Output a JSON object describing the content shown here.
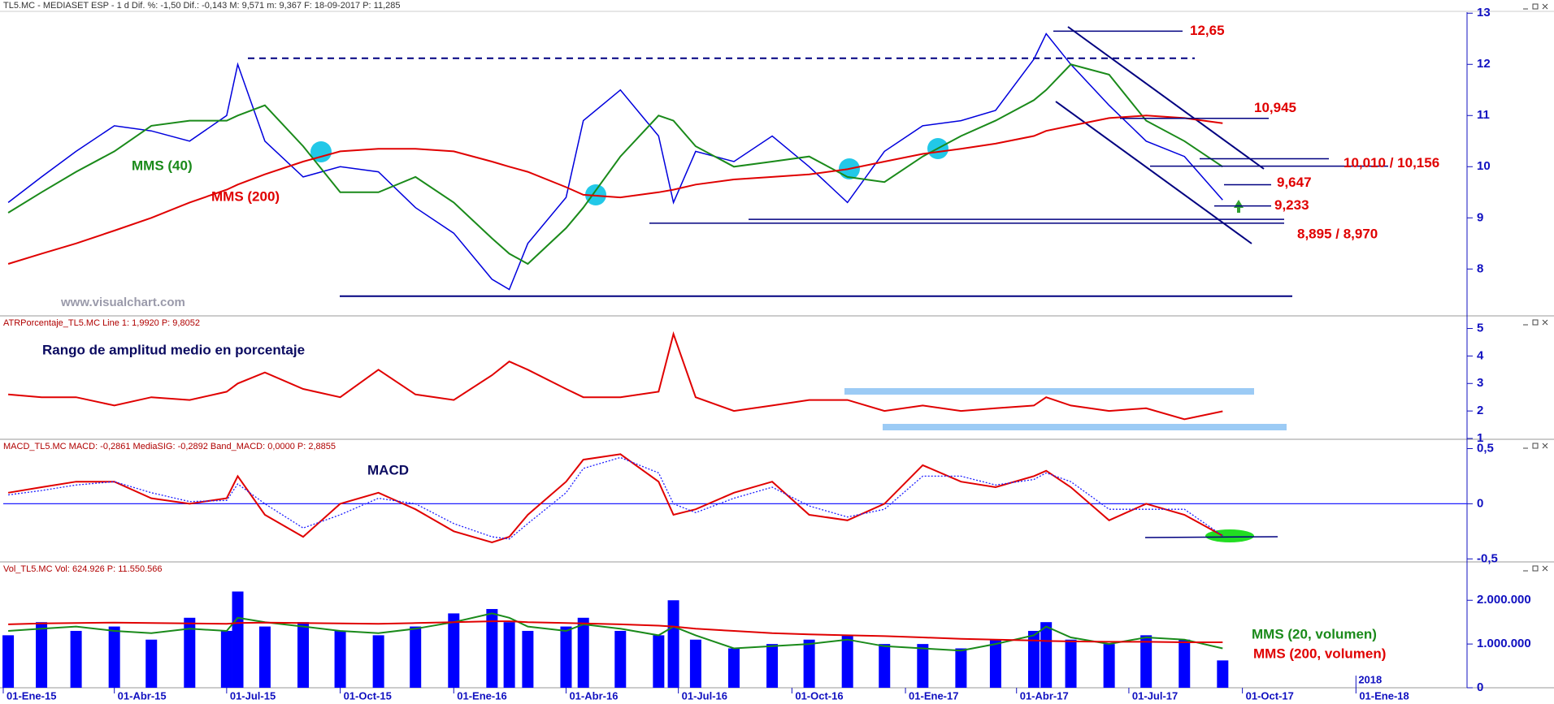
{
  "chart_data": [
    {
      "type": "line",
      "title": "TL5.MC - MEDIASET ESP - 1 d Dif. %: -1,50 Dif.: -0,143 M: 9,571 m: 9,367 F: 18-09-2017 P: 11,285",
      "x": [
        "2015-01-05",
        "2015-02-01",
        "2015-03-01",
        "2015-04-01",
        "2015-05-01",
        "2015-06-01",
        "2015-07-01",
        "2015-07-10",
        "2015-08-01",
        "2015-09-01",
        "2015-10-01",
        "2015-11-01",
        "2015-12-01",
        "2016-01-01",
        "2016-02-01",
        "2016-02-15",
        "2016-03-01",
        "2016-04-01",
        "2016-04-15",
        "2016-05-15",
        "2016-06-15",
        "2016-06-27",
        "2016-07-15",
        "2016-08-15",
        "2016-09-15",
        "2016-10-15",
        "2016-11-15",
        "2016-12-15",
        "2017-01-15",
        "2017-02-15",
        "2017-03-15",
        "2017-04-15",
        "2017-04-25",
        "2017-05-15",
        "2017-06-15",
        "2017-07-15",
        "2017-08-15",
        "2017-09-15"
      ],
      "xlim": [
        "2015-01-01",
        "2018-04-01"
      ],
      "ylim": [
        7.1,
        13.02
      ],
      "yticks": [
        8,
        9,
        10,
        11,
        12,
        13
      ],
      "series": [
        {
          "color": "#0000dd",
          "values": [
            9.3,
            9.8,
            10.3,
            10.8,
            10.7,
            10.5,
            11.0,
            12.0,
            10.5,
            9.8,
            10.0,
            9.9,
            9.2,
            8.7,
            7.8,
            7.6,
            8.5,
            9.4,
            10.9,
            11.5,
            10.6,
            9.3,
            10.3,
            10.1,
            10.6,
            10.0,
            9.3,
            10.3,
            10.8,
            10.9,
            11.1,
            12.1,
            12.6,
            12.0,
            11.2,
            10.5,
            10.2,
            9.35
          ]
        },
        {
          "name": "MMS (40)",
          "color": "#1a8a1a",
          "values": [
            9.1,
            9.5,
            9.9,
            10.3,
            10.8,
            10.9,
            10.9,
            11.0,
            11.2,
            10.4,
            9.5,
            9.5,
            9.8,
            9.3,
            8.6,
            8.3,
            8.1,
            8.8,
            9.2,
            10.2,
            11.0,
            10.9,
            10.4,
            10.0,
            10.1,
            10.2,
            9.8,
            9.7,
            10.2,
            10.6,
            10.9,
            11.3,
            11.5,
            12.0,
            11.8,
            10.9,
            10.5,
            10.0
          ]
        },
        {
          "name": "MMS (200)",
          "color": "#e00000",
          "values": [
            8.1,
            8.3,
            8.5,
            8.75,
            9.0,
            9.3,
            9.55,
            9.65,
            9.85,
            10.1,
            10.3,
            10.35,
            10.35,
            10.3,
            10.1,
            10.0,
            9.9,
            9.6,
            9.45,
            9.4,
            9.5,
            9.55,
            9.65,
            9.75,
            9.8,
            9.85,
            9.95,
            10.1,
            10.25,
            10.35,
            10.45,
            10.6,
            10.7,
            10.8,
            10.95,
            11.0,
            10.95,
            10.85
          ]
        }
      ],
      "levels": [
        {
          "values": [
            12.65
          ],
          "label": "12,65"
        },
        {
          "values": [
            10.945
          ],
          "label": "10,945"
        },
        {
          "values": [
            10.156,
            10.01
          ],
          "label": "10,010 / 10,156"
        },
        {
          "values": [
            9.647
          ],
          "label": "9,647"
        },
        {
          "values": [
            9.233
          ],
          "label": "9,233"
        },
        {
          "values": [
            8.895,
            8.97
          ],
          "label": "8,895 / 8,970"
        }
      ],
      "support_lines": [
        12.12,
        7.47
      ],
      "watermark": "www.visualchart.com"
    },
    {
      "type": "line",
      "title": "ATRPorcentaje_TL5.MC Line 1: 1,9920 P: 9,8052",
      "subtitle": "Rango de amplitud medio en porcentaje",
      "x": [
        "2015-01-05",
        "2015-02-01",
        "2015-03-01",
        "2015-04-01",
        "2015-05-01",
        "2015-06-01",
        "2015-07-01",
        "2015-07-10",
        "2015-08-01",
        "2015-09-01",
        "2015-10-01",
        "2015-11-01",
        "2015-12-01",
        "2016-01-01",
        "2016-02-01",
        "2016-02-15",
        "2016-03-01",
        "2016-04-01",
        "2016-04-15",
        "2016-05-15",
        "2016-06-15",
        "2016-06-27",
        "2016-07-15",
        "2016-08-15",
        "2016-09-15",
        "2016-10-15",
        "2016-11-15",
        "2016-12-15",
        "2017-01-15",
        "2017-02-15",
        "2017-03-15",
        "2017-04-15",
        "2017-04-25",
        "2017-05-15",
        "2017-06-15",
        "2017-07-15",
        "2017-08-15",
        "2017-09-15"
      ],
      "xlim": [
        "2015-01-01",
        "2018-04-01"
      ],
      "ylim": [
        1.0,
        5.4
      ],
      "yticks": [
        1,
        2,
        3,
        4,
        5
      ],
      "series": [
        {
          "color": "#e00000",
          "values": [
            2.6,
            2.5,
            2.5,
            2.2,
            2.5,
            2.4,
            2.7,
            3.0,
            3.4,
            2.8,
            2.5,
            3.5,
            2.6,
            2.4,
            3.3,
            3.8,
            3.5,
            2.8,
            2.5,
            2.5,
            2.7,
            4.8,
            2.5,
            2.0,
            2.2,
            2.4,
            2.4,
            2.0,
            2.2,
            2.0,
            2.1,
            2.2,
            2.5,
            2.2,
            2.0,
            2.1,
            1.7,
            1.99
          ]
        }
      ]
    },
    {
      "type": "line",
      "title": "MACD_TL5.MC MACD: -0,2861 MediaSIG: -0,2892 Band_MACD: 0,0000 P: 2,8855",
      "subtitle": "MACD",
      "x": [
        "2015-01-05",
        "2015-02-01",
        "2015-03-01",
        "2015-04-01",
        "2015-05-01",
        "2015-06-01",
        "2015-07-01",
        "2015-07-10",
        "2015-08-01",
        "2015-09-01",
        "2015-10-01",
        "2015-11-01",
        "2015-12-01",
        "2016-01-01",
        "2016-02-01",
        "2016-02-15",
        "2016-03-01",
        "2016-04-01",
        "2016-04-15",
        "2016-05-15",
        "2016-06-15",
        "2016-06-27",
        "2016-07-15",
        "2016-08-15",
        "2016-09-15",
        "2016-10-15",
        "2016-11-15",
        "2016-12-15",
        "2017-01-15",
        "2017-02-15",
        "2017-03-15",
        "2017-04-15",
        "2017-04-25",
        "2017-05-15",
        "2017-06-15",
        "2017-07-15",
        "2017-08-15",
        "2017-09-15"
      ],
      "xlim": [
        "2015-01-01",
        "2018-04-01"
      ],
      "ylim": [
        -0.52,
        0.57
      ],
      "yticks": [
        {
          "value": -0.5,
          "label": "-0,5"
        },
        0,
        {
          "value": 0.5,
          "label": "0,5"
        }
      ],
      "zero_line": true,
      "series": [
        {
          "color": "#e00000",
          "values": [
            0.1,
            0.15,
            0.2,
            0.2,
            0.05,
            0.0,
            0.05,
            0.25,
            -0.1,
            -0.3,
            0.0,
            0.1,
            -0.05,
            -0.25,
            -0.35,
            -0.3,
            -0.1,
            0.2,
            0.4,
            0.45,
            0.2,
            -0.1,
            -0.05,
            0.1,
            0.2,
            -0.1,
            -0.15,
            0.0,
            0.35,
            0.2,
            0.15,
            0.25,
            0.3,
            0.15,
            -0.15,
            0.0,
            -0.1,
            -0.29
          ]
        },
        {
          "color": "#2020ff",
          "dotted": true,
          "values": [
            0.08,
            0.12,
            0.17,
            0.2,
            0.1,
            0.02,
            0.03,
            0.18,
            0.0,
            -0.22,
            -0.1,
            0.05,
            0.0,
            -0.18,
            -0.3,
            -0.32,
            -0.18,
            0.1,
            0.32,
            0.42,
            0.28,
            0.0,
            -0.08,
            0.05,
            0.15,
            -0.02,
            -0.12,
            -0.05,
            0.25,
            0.25,
            0.17,
            0.22,
            0.28,
            0.2,
            -0.05,
            -0.05,
            -0.05,
            -0.29
          ]
        }
      ]
    },
    {
      "type": "bar",
      "title": "Vol_TL5.MC Vol: 624.926 P: 11.550.566",
      "x": [
        "2015-01-05",
        "2015-02-01",
        "2015-03-01",
        "2015-04-01",
        "2015-05-01",
        "2015-06-01",
        "2015-07-01",
        "2015-07-10",
        "2015-08-01",
        "2015-09-01",
        "2015-10-01",
        "2015-11-01",
        "2015-12-01",
        "2016-01-01",
        "2016-02-01",
        "2016-02-15",
        "2016-03-01",
        "2016-04-01",
        "2016-04-15",
        "2016-05-15",
        "2016-06-15",
        "2016-06-27",
        "2016-07-15",
        "2016-08-15",
        "2016-09-15",
        "2016-10-15",
        "2016-11-15",
        "2016-12-15",
        "2017-01-15",
        "2017-02-15",
        "2017-03-15",
        "2017-04-15",
        "2017-04-25",
        "2017-05-15",
        "2017-06-15",
        "2017-07-15",
        "2017-08-15",
        "2017-09-15"
      ],
      "xlim": [
        "2015-01-01",
        "2018-04-01"
      ],
      "xticks": [
        {
          "value": "2015-01-01",
          "label": "01-Ene-15"
        },
        {
          "value": "2015-04-01",
          "label": "01-Abr-15"
        },
        {
          "value": "2015-07-01",
          "label": "01-Jul-15"
        },
        {
          "value": "2015-10-01",
          "label": "01-Oct-15"
        },
        {
          "value": "2016-01-01",
          "label": "01-Ene-16"
        },
        {
          "value": "2016-04-01",
          "label": "01-Abr-16"
        },
        {
          "value": "2016-07-01",
          "label": "01-Jul-16"
        },
        {
          "value": "2016-10-01",
          "label": "01-Oct-16"
        },
        {
          "value": "2017-01-01",
          "label": "01-Ene-17"
        },
        {
          "value": "2017-04-01",
          "label": "01-Abr-17"
        },
        {
          "value": "2017-07-01",
          "label": "01-Jul-17"
        },
        {
          "value": "2017-10-01",
          "label": "01-Oct-17"
        },
        {
          "value": "2018-01-01",
          "label": "01-Ene-18"
        }
      ],
      "annotations": [
        {
          "value": "2018-01-01",
          "label": "2018"
        }
      ],
      "ylim": [
        0,
        2840000
      ],
      "yticks": [
        0,
        {
          "value": 1000000,
          "label": "1.000.000"
        },
        {
          "value": 2000000,
          "label": "2.000.000"
        }
      ],
      "series": [
        {
          "type": "bar",
          "color": "#0000ff",
          "values": [
            1200000,
            1500000,
            1300000,
            1400000,
            1100000,
            1600000,
            1300000,
            2200000,
            1400000,
            1500000,
            1300000,
            1200000,
            1400000,
            1700000,
            1800000,
            1500000,
            1300000,
            1400000,
            1600000,
            1300000,
            1200000,
            2000000,
            1100000,
            900000,
            1000000,
            1100000,
            1200000,
            1000000,
            1000000,
            900000,
            1100000,
            1300000,
            1500000,
            1100000,
            1000000,
            1200000,
            1100000,
            624926
          ]
        },
        {
          "type": "line",
          "name": "MMS (20, volumen)",
          "color": "#1a8a1a",
          "values": [
            1300000,
            1350000,
            1400000,
            1300000,
            1250000,
            1350000,
            1300000,
            1600000,
            1500000,
            1400000,
            1300000,
            1250000,
            1350000,
            1500000,
            1700000,
            1600000,
            1400000,
            1300000,
            1450000,
            1350000,
            1200000,
            1400000,
            1200000,
            900000,
            950000,
            1000000,
            1100000,
            950000,
            900000,
            850000,
            1000000,
            1200000,
            1400000,
            1150000,
            1000000,
            1150000,
            1100000,
            900000
          ]
        },
        {
          "type": "line",
          "name": "MMS (200, volumen)",
          "color": "#e00000",
          "values": [
            1450000,
            1470000,
            1480000,
            1490000,
            1480000,
            1470000,
            1460000,
            1480000,
            1490000,
            1480000,
            1470000,
            1460000,
            1480000,
            1500000,
            1520000,
            1520000,
            1500000,
            1480000,
            1470000,
            1450000,
            1420000,
            1400000,
            1350000,
            1300000,
            1250000,
            1220000,
            1200000,
            1180000,
            1150000,
            1120000,
            1100000,
            1080000,
            1070000,
            1060000,
            1050000,
            1050000,
            1040000,
            1040000
          ]
        }
      ]
    }
  ]
}
